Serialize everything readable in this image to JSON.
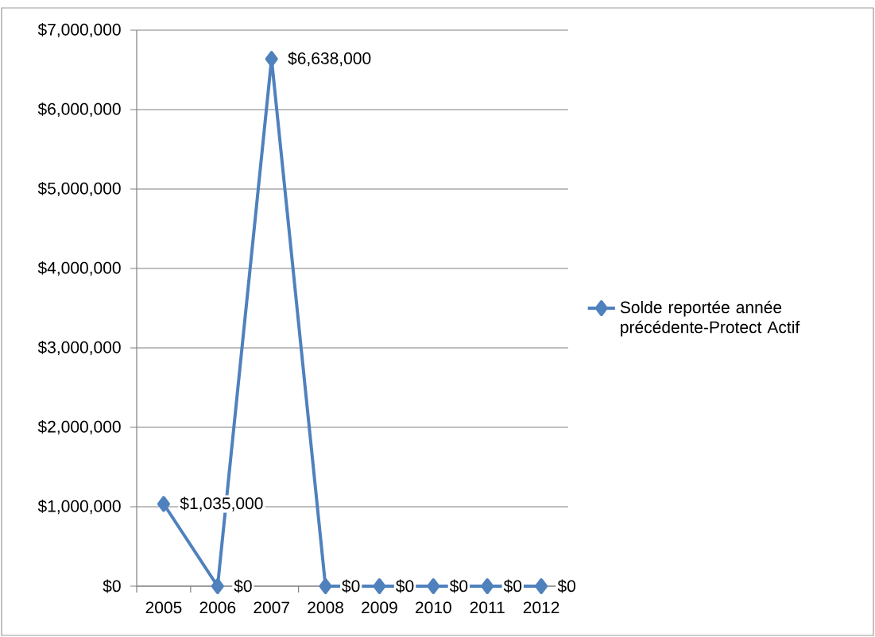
{
  "chart_data": {
    "type": "line",
    "categories": [
      "2005",
      "2006",
      "2007",
      "2008",
      "2009",
      "2010",
      "2011",
      "2012"
    ],
    "series": [
      {
        "name": "Solde reportée année précédente-Protect Actif",
        "color": "#4f81bd",
        "values": [
          1035000,
          0,
          6638000,
          0,
          0,
          0,
          0,
          0
        ],
        "value_labels": [
          "$1,035,000",
          "$0",
          "$6,638,000",
          "$0",
          "$0",
          "$0",
          "$0",
          "$0"
        ]
      }
    ],
    "ylim": [
      0,
      7000000
    ],
    "yticks": [
      {
        "value": 0,
        "label": "$0"
      },
      {
        "value": 1000000,
        "label": "$1,000,000"
      },
      {
        "value": 2000000,
        "label": "$2,000,000"
      },
      {
        "value": 3000000,
        "label": "$3,000,000"
      },
      {
        "value": 4000000,
        "label": "$4,000,000"
      },
      {
        "value": 5000000,
        "label": "$5,000,000"
      },
      {
        "value": 6000000,
        "label": "$6,000,000"
      },
      {
        "value": 7000000,
        "label": "$7,000,000"
      }
    ],
    "grid": "y",
    "legend": "right",
    "marker": "diamond",
    "line_style": "solid"
  }
}
